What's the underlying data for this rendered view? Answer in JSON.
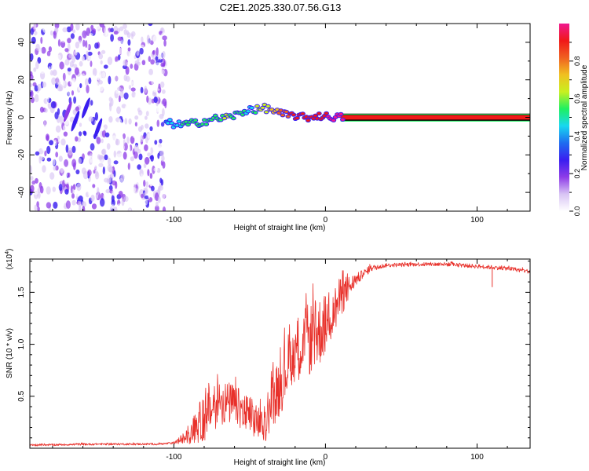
{
  "figure_title": "C2E1.2025.330.07.56.G13",
  "chart_data": [
    {
      "type": "heatmap",
      "title": "C2E1.2025.330.07.56.G13",
      "xlabel": "Height of straight line (km)",
      "ylabel": "Frequency (Hz)",
      "xlim": [
        -195,
        135
      ],
      "ylim": [
        -50,
        50
      ],
      "x_ticks": [
        -100,
        0,
        100
      ],
      "x_tick_labels": [
        "-100",
        "0",
        "100"
      ],
      "y_ticks": [
        -40,
        -20,
        0,
        20,
        40
      ],
      "y_tick_labels": [
        "-40",
        "-20",
        "0",
        "20",
        "40"
      ],
      "colorbar": {
        "label": "Normalized spectral amplitude",
        "range": [
          0.0,
          1.0
        ],
        "ticks": [
          0.0,
          0.2,
          0.4,
          0.6,
          0.8
        ],
        "tick_labels": [
          "0.0",
          "0.2",
          "0.4",
          "0.6",
          "0.8"
        ],
        "colormap": [
          "#ffffff",
          "#d8c4f4",
          "#8e3ce8",
          "#3a1ef0",
          "#1e6cf0",
          "#18d8f0",
          "#1ef060",
          "#c8f020",
          "#f0c020",
          "#f06020",
          "#f01818",
          "#f01890"
        ]
      },
      "series": [
        {
          "name": "noise region",
          "x_range": [
            -195,
            -105
          ],
          "amplitude_range": [
            0.0,
            0.3
          ]
        },
        {
          "name": "dominant frequency trace",
          "x": [
            -105,
            -95,
            -85,
            -75,
            -65,
            -55,
            -50,
            -45,
            -40,
            -35,
            -30,
            -25,
            -20,
            -15,
            -10,
            -5,
            0,
            10,
            50,
            100,
            135
          ],
          "y": [
            -3,
            -4,
            -3,
            -1,
            0,
            2,
            5,
            4,
            5,
            4,
            2,
            1,
            1,
            0,
            0,
            1,
            0.5,
            0,
            0,
            0,
            0
          ],
          "amplitude": [
            0.4,
            0.5,
            0.5,
            0.55,
            0.6,
            0.55,
            0.45,
            0.6,
            0.65,
            0.7,
            0.8,
            0.85,
            0.9,
            0.9,
            0.95,
            0.95,
            0.95,
            1.0,
            1.0,
            1.0,
            1.0
          ]
        }
      ],
      "grid": false
    },
    {
      "type": "line",
      "xlabel": "Height of straight line (km)",
      "ylabel": "SNR (10 * v/v)",
      "y_scale_label": "(x10",
      "y_scale_exponent": "4",
      "y_scale_suffix": ")",
      "xlim": [
        -195,
        135
      ],
      "ylim": [
        0,
        1.82
      ],
      "x_ticks": [
        -100,
        0,
        100
      ],
      "x_tick_labels": [
        "-100",
        "0",
        "100"
      ],
      "y_ticks": [
        0.5,
        1.0,
        1.5
      ],
      "y_tick_labels": [
        "0.5",
        "1.0",
        "1.5"
      ],
      "color": "#e8302a",
      "series": [
        {
          "name": "SNR envelope",
          "x": [
            -195,
            -150,
            -110,
            -100,
            -90,
            -80,
            -70,
            -60,
            -50,
            -45,
            -40,
            -35,
            -30,
            -25,
            -20,
            -15,
            -10,
            -5,
            0,
            5,
            10,
            20,
            30,
            40,
            60,
            80,
            100,
            120,
            135
          ],
          "y": [
            0.03,
            0.04,
            0.04,
            0.05,
            0.12,
            0.3,
            0.45,
            0.42,
            0.3,
            0.25,
            0.2,
            0.45,
            0.6,
            0.8,
            0.95,
            1.0,
            1.05,
            1.1,
            1.2,
            1.3,
            1.45,
            1.62,
            1.73,
            1.76,
            1.77,
            1.77,
            1.75,
            1.73,
            1.7
          ],
          "noise_amplitude": [
            0.01,
            0.01,
            0.01,
            0.01,
            0.08,
            0.25,
            0.22,
            0.2,
            0.2,
            0.18,
            0.15,
            0.25,
            0.3,
            0.3,
            0.3,
            0.35,
            0.35,
            0.35,
            0.3,
            0.25,
            0.2,
            0.06,
            0.03,
            0.02,
            0.02,
            0.02,
            0.02,
            0.02,
            0.02
          ]
        }
      ],
      "annotations": [
        {
          "x": 110,
          "y_low": 1.55,
          "y_high": 1.74,
          "label": ""
        }
      ],
      "grid": false
    }
  ]
}
